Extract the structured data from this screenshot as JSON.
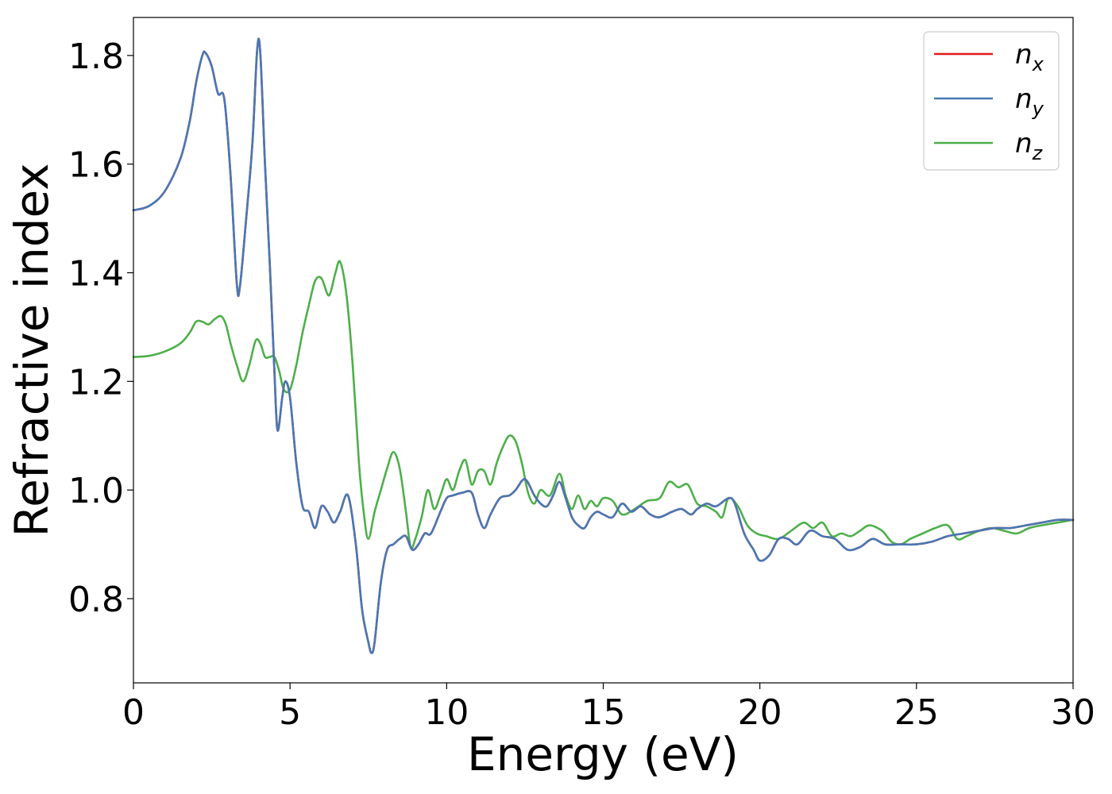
{
  "chart_data": {
    "type": "line",
    "xlabel": "Energy (eV)",
    "ylabel": "Refractive index",
    "xlim": [
      0,
      30
    ],
    "ylim": [
      0.645,
      1.87
    ],
    "xticks": [
      0,
      5,
      10,
      15,
      20,
      25,
      30
    ],
    "xtick_labels": [
      "0",
      "5",
      "10",
      "15",
      "20",
      "25",
      "30"
    ],
    "yticks": [
      0.8,
      1.0,
      1.2,
      1.4,
      1.6,
      1.8
    ],
    "ytick_labels": [
      "0.8",
      "1.0",
      "1.2",
      "1.4",
      "1.6",
      "1.8"
    ],
    "grid": false,
    "legend_position": "top-right",
    "series": [
      {
        "name": "n_x",
        "label_base": "n",
        "label_sub": "x",
        "color": "#e41a1c",
        "x": [
          0,
          0.5,
          1,
          1.5,
          1.8,
          2.0,
          2.2,
          2.3,
          2.5,
          2.7,
          2.9,
          3.1,
          3.3,
          3.4,
          3.6,
          3.8,
          3.95,
          4.05,
          4.2,
          4.35,
          4.5,
          4.6,
          4.75,
          4.85,
          5.0,
          5.2,
          5.4,
          5.6,
          5.8,
          6.0,
          6.2,
          6.4,
          6.6,
          6.85,
          7.1,
          7.3,
          7.5,
          7.6,
          7.7,
          7.9,
          8.1,
          8.3,
          8.5,
          8.7,
          8.9,
          9.1,
          9.3,
          9.5,
          9.8,
          10.0,
          10.2,
          10.5,
          10.8,
          11.0,
          11.2,
          11.4,
          11.7,
          12.0,
          12.2,
          12.5,
          12.8,
          13.0,
          13.2,
          13.4,
          13.6,
          13.8,
          14.0,
          14.2,
          14.4,
          14.6,
          14.8,
          15.0,
          15.3,
          15.6,
          15.9,
          16.2,
          16.5,
          16.8,
          17.2,
          17.5,
          17.8,
          18.0,
          18.3,
          18.6,
          19.0,
          19.2,
          19.5,
          19.8,
          20.0,
          20.3,
          20.6,
          20.9,
          21.2,
          21.6,
          22.0,
          22.4,
          22.8,
          23.2,
          23.6,
          24.0,
          24.5,
          25.0,
          25.5,
          26.0,
          26.5,
          27.0,
          27.5,
          28.0,
          28.5,
          29.0,
          29.5,
          30.0
        ],
        "y": [
          1.515,
          1.523,
          1.55,
          1.61,
          1.68,
          1.75,
          1.8,
          1.805,
          1.78,
          1.73,
          1.72,
          1.58,
          1.38,
          1.375,
          1.5,
          1.64,
          1.81,
          1.805,
          1.6,
          1.42,
          1.22,
          1.11,
          1.17,
          1.2,
          1.17,
          1.05,
          0.97,
          0.96,
          0.93,
          0.97,
          0.96,
          0.94,
          0.96,
          0.99,
          0.9,
          0.78,
          0.72,
          0.7,
          0.72,
          0.83,
          0.89,
          0.9,
          0.91,
          0.915,
          0.89,
          0.9,
          0.92,
          0.92,
          0.96,
          0.985,
          0.99,
          0.995,
          0.995,
          0.955,
          0.93,
          0.955,
          0.985,
          0.99,
          1.0,
          1.02,
          0.99,
          0.975,
          0.97,
          0.99,
          1.015,
          0.985,
          0.95,
          0.935,
          0.93,
          0.95,
          0.96,
          0.955,
          0.95,
          0.975,
          0.96,
          0.97,
          0.955,
          0.95,
          0.96,
          0.965,
          0.955,
          0.965,
          0.975,
          0.97,
          0.985,
          0.975,
          0.92,
          0.89,
          0.87,
          0.88,
          0.91,
          0.91,
          0.9,
          0.925,
          0.915,
          0.91,
          0.89,
          0.895,
          0.91,
          0.9,
          0.9,
          0.9,
          0.905,
          0.915,
          0.92,
          0.925,
          0.93,
          0.93,
          0.935,
          0.94,
          0.945,
          0.945
        ]
      },
      {
        "name": "n_y",
        "label_base": "n",
        "label_sub": "y",
        "color": "#4878b4",
        "x": [
          0,
          0.5,
          1,
          1.5,
          1.8,
          2.0,
          2.2,
          2.3,
          2.5,
          2.7,
          2.9,
          3.1,
          3.3,
          3.4,
          3.6,
          3.8,
          3.95,
          4.05,
          4.2,
          4.35,
          4.5,
          4.6,
          4.75,
          4.85,
          5.0,
          5.2,
          5.4,
          5.6,
          5.8,
          6.0,
          6.2,
          6.4,
          6.6,
          6.85,
          7.1,
          7.3,
          7.5,
          7.6,
          7.7,
          7.9,
          8.1,
          8.3,
          8.5,
          8.7,
          8.9,
          9.1,
          9.3,
          9.5,
          9.8,
          10.0,
          10.2,
          10.5,
          10.8,
          11.0,
          11.2,
          11.4,
          11.7,
          12.0,
          12.2,
          12.5,
          12.8,
          13.0,
          13.2,
          13.4,
          13.6,
          13.8,
          14.0,
          14.2,
          14.4,
          14.6,
          14.8,
          15.0,
          15.3,
          15.6,
          15.9,
          16.2,
          16.5,
          16.8,
          17.2,
          17.5,
          17.8,
          18.0,
          18.3,
          18.6,
          19.0,
          19.2,
          19.5,
          19.8,
          20.0,
          20.3,
          20.6,
          20.9,
          21.2,
          21.6,
          22.0,
          22.4,
          22.8,
          23.2,
          23.6,
          24.0,
          24.5,
          25.0,
          25.5,
          26.0,
          26.5,
          27.0,
          27.5,
          28.0,
          28.5,
          29.0,
          29.5,
          30.0
        ],
        "y": [
          1.515,
          1.523,
          1.55,
          1.61,
          1.68,
          1.75,
          1.8,
          1.805,
          1.78,
          1.73,
          1.72,
          1.58,
          1.38,
          1.375,
          1.5,
          1.64,
          1.81,
          1.805,
          1.6,
          1.42,
          1.22,
          1.11,
          1.17,
          1.2,
          1.17,
          1.05,
          0.97,
          0.96,
          0.93,
          0.97,
          0.96,
          0.94,
          0.96,
          0.99,
          0.9,
          0.78,
          0.72,
          0.7,
          0.72,
          0.83,
          0.89,
          0.9,
          0.91,
          0.915,
          0.89,
          0.9,
          0.92,
          0.92,
          0.96,
          0.985,
          0.99,
          0.995,
          0.995,
          0.955,
          0.93,
          0.955,
          0.985,
          0.99,
          1.0,
          1.02,
          0.99,
          0.975,
          0.97,
          0.99,
          1.015,
          0.985,
          0.95,
          0.935,
          0.93,
          0.95,
          0.96,
          0.955,
          0.95,
          0.975,
          0.96,
          0.97,
          0.955,
          0.95,
          0.96,
          0.965,
          0.955,
          0.965,
          0.975,
          0.97,
          0.985,
          0.975,
          0.92,
          0.89,
          0.87,
          0.88,
          0.91,
          0.91,
          0.9,
          0.925,
          0.915,
          0.91,
          0.89,
          0.895,
          0.91,
          0.9,
          0.9,
          0.9,
          0.905,
          0.915,
          0.92,
          0.925,
          0.93,
          0.93,
          0.935,
          0.94,
          0.945,
          0.945
        ]
      },
      {
        "name": "n_z",
        "label_base": "n",
        "label_sub": "z",
        "color": "#4daf4a",
        "x": [
          0,
          0.5,
          1,
          1.5,
          1.8,
          2.0,
          2.2,
          2.4,
          2.6,
          2.8,
          2.95,
          3.1,
          3.3,
          3.5,
          3.7,
          3.9,
          4.05,
          4.2,
          4.35,
          4.5,
          4.65,
          4.8,
          5.0,
          5.2,
          5.4,
          5.6,
          5.8,
          6.0,
          6.2,
          6.3,
          6.45,
          6.6,
          6.8,
          7.0,
          7.2,
          7.35,
          7.5,
          7.7,
          7.9,
          8.1,
          8.3,
          8.5,
          8.7,
          8.85,
          9.0,
          9.2,
          9.4,
          9.6,
          9.8,
          10.0,
          10.2,
          10.4,
          10.6,
          10.8,
          11.0,
          11.2,
          11.4,
          11.6,
          11.8,
          12.0,
          12.2,
          12.4,
          12.6,
          12.8,
          13.0,
          13.3,
          13.6,
          13.8,
          14.0,
          14.2,
          14.4,
          14.6,
          14.8,
          15.0,
          15.3,
          15.6,
          16.0,
          16.4,
          16.8,
          17.1,
          17.4,
          17.7,
          18.0,
          18.3,
          18.6,
          18.8,
          19.0,
          19.3,
          19.6,
          19.9,
          20.2,
          20.6,
          21.0,
          21.4,
          21.7,
          22.0,
          22.3,
          22.6,
          22.9,
          23.2,
          23.5,
          23.9,
          24.2,
          24.5,
          24.8,
          25.2,
          25.6,
          26.0,
          26.3,
          26.6,
          27.0,
          27.4,
          27.8,
          28.2,
          28.6,
          29.0,
          29.5,
          30.0
        ],
        "y": [
          1.245,
          1.247,
          1.255,
          1.27,
          1.29,
          1.31,
          1.31,
          1.305,
          1.315,
          1.32,
          1.305,
          1.27,
          1.23,
          1.2,
          1.23,
          1.275,
          1.27,
          1.245,
          1.245,
          1.245,
          1.22,
          1.185,
          1.185,
          1.23,
          1.29,
          1.34,
          1.385,
          1.39,
          1.36,
          1.365,
          1.4,
          1.42,
          1.36,
          1.23,
          1.05,
          0.96,
          0.91,
          0.96,
          1.0,
          1.04,
          1.07,
          1.04,
          0.96,
          0.895,
          0.91,
          0.95,
          1.0,
          0.965,
          0.99,
          1.02,
          1.0,
          1.035,
          1.055,
          1.01,
          1.035,
          1.035,
          1.01,
          1.05,
          1.08,
          1.1,
          1.09,
          1.05,
          0.995,
          0.975,
          1.0,
          0.99,
          1.03,
          0.99,
          0.965,
          0.99,
          0.965,
          0.98,
          0.97,
          0.985,
          0.98,
          0.955,
          0.965,
          0.98,
          0.985,
          1.015,
          1.005,
          1.01,
          0.975,
          0.97,
          0.96,
          0.95,
          0.985,
          0.97,
          0.935,
          0.92,
          0.915,
          0.91,
          0.925,
          0.94,
          0.93,
          0.94,
          0.915,
          0.92,
          0.915,
          0.925,
          0.935,
          0.925,
          0.905,
          0.9,
          0.91,
          0.92,
          0.93,
          0.935,
          0.91,
          0.915,
          0.925,
          0.93,
          0.925,
          0.92,
          0.93,
          0.935,
          0.94,
          0.945
        ]
      }
    ]
  }
}
